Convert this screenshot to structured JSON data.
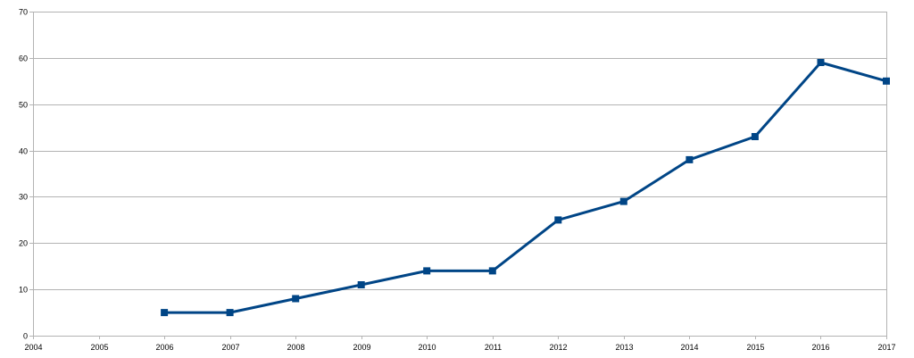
{
  "chart_data": {
    "type": "line",
    "title": "",
    "xlabel": "",
    "ylabel": "",
    "categories": [
      "2004",
      "2005",
      "2006",
      "2007",
      "2008",
      "2009",
      "2010",
      "2011",
      "2012",
      "2013",
      "2014",
      "2015",
      "2016",
      "2017"
    ],
    "series": [
      {
        "values": [
          null,
          null,
          5,
          5,
          8,
          11,
          14,
          14,
          25,
          29,
          38,
          43,
          59,
          55
        ],
        "color": "#004586",
        "marker": "square"
      }
    ],
    "yticks": [
      "0",
      "10",
      "20",
      "30",
      "40",
      "50",
      "60",
      "70"
    ],
    "ylim": [
      0,
      70
    ],
    "grid": true,
    "legend": "none"
  }
}
